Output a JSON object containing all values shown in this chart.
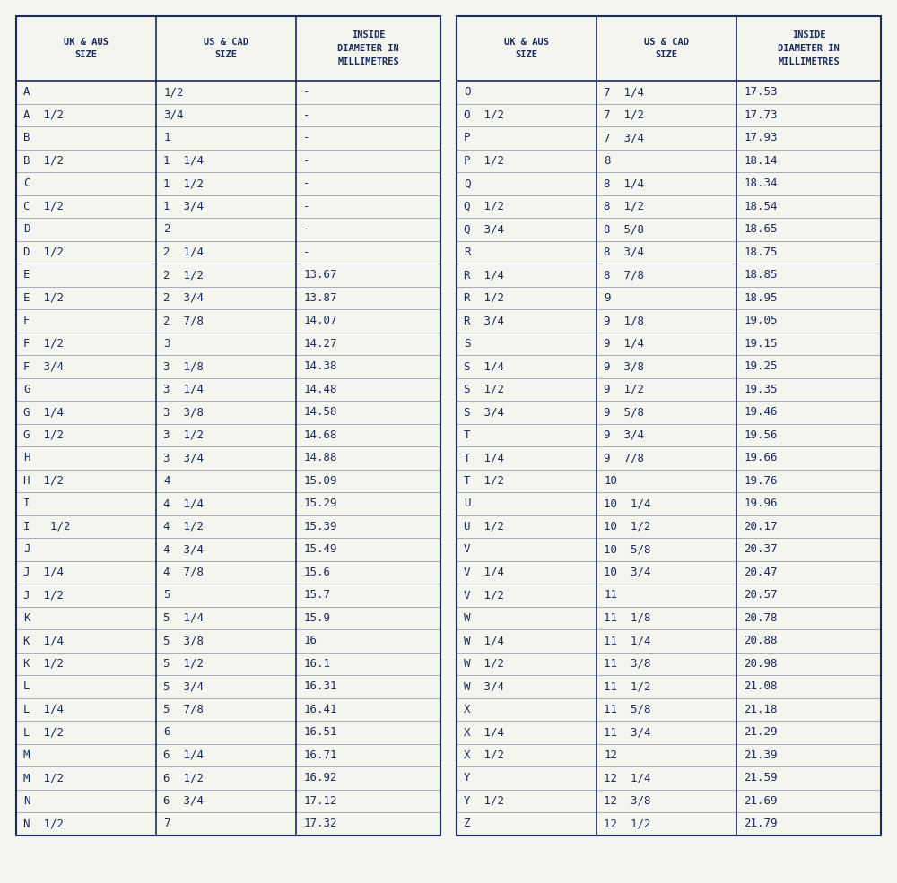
{
  "bg_color": "#f5f5f0",
  "text_color": "#1a2b5e",
  "border_color": "#1a2b5e",
  "font_family": "monospace",
  "header_fontsize": 7.5,
  "data_fontsize": 9,
  "left_table": {
    "headers": [
      "UK & AUS\nSIZE",
      "US & CAD\nSIZE",
      "INSIDE\nDIAMETER IN\nMILLIMETRES"
    ],
    "rows": [
      [
        "A",
        "1/2",
        "-"
      ],
      [
        "A  1/2",
        "3/4",
        "-"
      ],
      [
        "B",
        "1",
        "-"
      ],
      [
        "B  1/2",
        "1  1/4",
        "-"
      ],
      [
        "C",
        "1  1/2",
        "-"
      ],
      [
        "C  1/2",
        "1  3/4",
        "-"
      ],
      [
        "D",
        "2",
        "-"
      ],
      [
        "D  1/2",
        "2  1/4",
        "-"
      ],
      [
        "E",
        "2  1/2",
        "13.67"
      ],
      [
        "E  1/2",
        "2  3/4",
        "13.87"
      ],
      [
        "F",
        "2  7/8",
        "14.07"
      ],
      [
        "F  1/2",
        "3",
        "14.27"
      ],
      [
        "F  3/4",
        "3  1/8",
        "14.38"
      ],
      [
        "G",
        "3  1/4",
        "14.48"
      ],
      [
        "G  1/4",
        "3  3/8",
        "14.58"
      ],
      [
        "G  1/2",
        "3  1/2",
        "14.68"
      ],
      [
        "H",
        "3  3/4",
        "14.88"
      ],
      [
        "H  1/2",
        "4",
        "15.09"
      ],
      [
        "I",
        "4  1/4",
        "15.29"
      ],
      [
        "I   1/2",
        "4  1/2",
        "15.39"
      ],
      [
        "J",
        "4  3/4",
        "15.49"
      ],
      [
        "J  1/4",
        "4  7/8",
        "15.6"
      ],
      [
        "J  1/2",
        "5",
        "15.7"
      ],
      [
        "K",
        "5  1/4",
        "15.9"
      ],
      [
        "K  1/4",
        "5  3/8",
        "16"
      ],
      [
        "K  1/2",
        "5  1/2",
        "16.1"
      ],
      [
        "L",
        "5  3/4",
        "16.31"
      ],
      [
        "L  1/4",
        "5  7/8",
        "16.41"
      ],
      [
        "L  1/2",
        "6",
        "16.51"
      ],
      [
        "M",
        "6  1/4",
        "16.71"
      ],
      [
        "M  1/2",
        "6  1/2",
        "16.92"
      ],
      [
        "N",
        "6  3/4",
        "17.12"
      ],
      [
        "N  1/2",
        "7",
        "17.32"
      ]
    ]
  },
  "right_table": {
    "headers": [
      "UK & AUS\nSIZE",
      "US & CAD\nSIZE",
      "INSIDE\nDIAMETER IN\nMILLIMETRES"
    ],
    "rows": [
      [
        "O",
        "7  1/4",
        "17.53"
      ],
      [
        "O  1/2",
        "7  1/2",
        "17.73"
      ],
      [
        "P",
        "7  3/4",
        "17.93"
      ],
      [
        "P  1/2",
        "8",
        "18.14"
      ],
      [
        "Q",
        "8  1/4",
        "18.34"
      ],
      [
        "Q  1/2",
        "8  1/2",
        "18.54"
      ],
      [
        "Q  3/4",
        "8  5/8",
        "18.65"
      ],
      [
        "R",
        "8  3/4",
        "18.75"
      ],
      [
        "R  1/4",
        "8  7/8",
        "18.85"
      ],
      [
        "R  1/2",
        "9",
        "18.95"
      ],
      [
        "R  3/4",
        "9  1/8",
        "19.05"
      ],
      [
        "S",
        "9  1/4",
        "19.15"
      ],
      [
        "S  1/4",
        "9  3/8",
        "19.25"
      ],
      [
        "S  1/2",
        "9  1/2",
        "19.35"
      ],
      [
        "S  3/4",
        "9  5/8",
        "19.46"
      ],
      [
        "T",
        "9  3/4",
        "19.56"
      ],
      [
        "T  1/4",
        "9  7/8",
        "19.66"
      ],
      [
        "T  1/2",
        "10",
        "19.76"
      ],
      [
        "U",
        "10  1/4",
        "19.96"
      ],
      [
        "U  1/2",
        "10  1/2",
        "20.17"
      ],
      [
        "V",
        "10  5/8",
        "20.37"
      ],
      [
        "V  1/4",
        "10  3/4",
        "20.47"
      ],
      [
        "V  1/2",
        "11",
        "20.57"
      ],
      [
        "W",
        "11  1/8",
        "20.78"
      ],
      [
        "W  1/4",
        "11  1/4",
        "20.88"
      ],
      [
        "W  1/2",
        "11  3/8",
        "20.98"
      ],
      [
        "W  3/4",
        "11  1/2",
        "21.08"
      ],
      [
        "X",
        "11  5/8",
        "21.18"
      ],
      [
        "X  1/4",
        "11  3/4",
        "21.29"
      ],
      [
        "X  1/2",
        "12",
        "21.39"
      ],
      [
        "Y",
        "12  1/4",
        "21.59"
      ],
      [
        "Y  1/2",
        "12  3/8",
        "21.69"
      ],
      [
        "Z",
        "12  1/2",
        "21.79"
      ]
    ]
  }
}
